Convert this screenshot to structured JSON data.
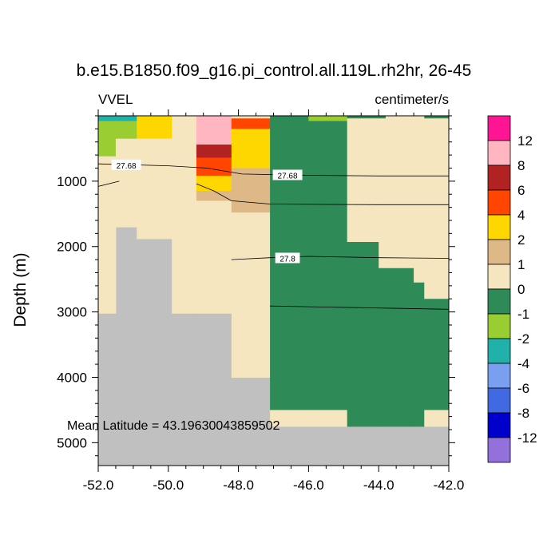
{
  "chart_data": {
    "type": "heatmap",
    "title": "b.e15.B1850.f09_g16.pi_control.all.119L.rh2hr, 26-45",
    "left_label": "VVEL",
    "right_label": "centimeter/s",
    "ylabel": "Depth (m)",
    "xlabel": "",
    "xlim": [
      -52.0,
      -42.0
    ],
    "ylim": [
      0,
      5350
    ],
    "y_inverted": true,
    "x_ticks": [
      -52.0,
      -50.0,
      -48.0,
      -46.0,
      -44.0,
      -42.0
    ],
    "x_tick_labels": [
      "-52.0",
      "-50.0",
      "-48.0",
      "-46.0",
      "-44.0",
      "-42.0"
    ],
    "y_ticks": [
      1000,
      2000,
      3000,
      4000,
      5000
    ],
    "y_tick_labels": [
      "1000",
      "2000",
      "3000",
      "4000",
      "5000"
    ],
    "annotation": "Mean Latitude = 43.19630043859502",
    "missing_color": "#c0c0c0",
    "colorbar": {
      "colors": [
        "#ff1493",
        "#ffb6c1",
        "#b22222",
        "#ff4500",
        "#ffd700",
        "#deb887",
        "#f5e6bf",
        "#2e8b57",
        "#9acd32",
        "#20b2aa",
        "#7b9ff0",
        "#4169e1",
        "#0000cd",
        "#9370db"
      ],
      "labels": [
        "12",
        "8",
        "6",
        "4",
        "2",
        "1",
        "0",
        "-1",
        "-2",
        "-4",
        "-6",
        "-8",
        "-12"
      ]
    },
    "cells": [
      {
        "x0": -52.0,
        "x1": -51.5,
        "y0": 0,
        "y1": 80,
        "c": "#20b2aa"
      },
      {
        "x0": -51.5,
        "x1": -50.9,
        "y0": 0,
        "y1": 80,
        "c": "#20b2aa"
      },
      {
        "x0": -52.0,
        "x1": -51.5,
        "y0": 80,
        "y1": 620,
        "c": "#9acd32"
      },
      {
        "x0": -51.5,
        "x1": -50.9,
        "y0": 80,
        "y1": 350,
        "c": "#9acd32"
      },
      {
        "x0": -51.5,
        "x1": -50.9,
        "y0": 350,
        "y1": 1700,
        "c": "#f5e6bf"
      },
      {
        "x0": -52.0,
        "x1": -51.5,
        "y0": 620,
        "y1": 3020,
        "c": "#f5e6bf"
      },
      {
        "x0": -50.9,
        "x1": -49.9,
        "y0": 0,
        "y1": 350,
        "c": "#ffd700"
      },
      {
        "x0": -50.9,
        "x1": -49.9,
        "y0": 350,
        "y1": 1880,
        "c": "#f5e6bf"
      },
      {
        "x0": -49.9,
        "x1": -49.2,
        "y0": 0,
        "y1": 350,
        "c": "#f5e6bf"
      },
      {
        "x0": -49.9,
        "x1": -49.2,
        "y0": 350,
        "y1": 3020,
        "c": "#f5e6bf"
      },
      {
        "x0": -49.2,
        "x1": -48.2,
        "y0": 0,
        "y1": 440,
        "c": "#ffb6c1"
      },
      {
        "x0": -49.2,
        "x1": -48.2,
        "y0": 440,
        "y1": 640,
        "c": "#b22222"
      },
      {
        "x0": -49.2,
        "x1": -48.2,
        "y0": 640,
        "y1": 920,
        "c": "#ff4500"
      },
      {
        "x0": -49.2,
        "x1": -48.2,
        "y0": 920,
        "y1": 1150,
        "c": "#ffd700"
      },
      {
        "x0": -49.2,
        "x1": -48.2,
        "y0": 1150,
        "y1": 1300,
        "c": "#deb887"
      },
      {
        "x0": -49.2,
        "x1": -48.2,
        "y0": 1300,
        "y1": 3020,
        "c": "#f5e6bf"
      },
      {
        "x0": -48.2,
        "x1": -47.1,
        "y0": 0,
        "y1": 40,
        "c": "#f5e6bf"
      },
      {
        "x0": -48.2,
        "x1": -47.1,
        "y0": 40,
        "y1": 200,
        "c": "#ff4500"
      },
      {
        "x0": -48.2,
        "x1": -47.1,
        "y0": 200,
        "y1": 800,
        "c": "#ffd700"
      },
      {
        "x0": -48.2,
        "x1": -47.1,
        "y0": 800,
        "y1": 1480,
        "c": "#deb887"
      },
      {
        "x0": -48.2,
        "x1": -47.1,
        "y0": 1480,
        "y1": 4000,
        "c": "#f5e6bf"
      },
      {
        "x0": -47.1,
        "x1": -46.0,
        "y0": 0,
        "y1": 3020,
        "c": "#2e8b57"
      },
      {
        "x0": -47.1,
        "x1": -46.0,
        "y0": 3020,
        "y1": 4000,
        "c": "#2e8b57"
      },
      {
        "x0": -47.1,
        "x1": -46.0,
        "y0": 4000,
        "y1": 4500,
        "c": "#2e8b57"
      },
      {
        "x0": -47.1,
        "x1": -46.0,
        "y0": 4500,
        "y1": 4750,
        "c": "#f5e6bf"
      },
      {
        "x0": -46.0,
        "x1": -44.9,
        "y0": 0,
        "y1": 80,
        "c": "#9acd32"
      },
      {
        "x0": -46.0,
        "x1": -44.9,
        "y0": 80,
        "y1": 4500,
        "c": "#2e8b57"
      },
      {
        "x0": -46.0,
        "x1": -44.9,
        "y0": 4500,
        "y1": 4750,
        "c": "#f5e6bf"
      },
      {
        "x0": -44.9,
        "x1": -44.0,
        "y0": 0,
        "y1": 40,
        "c": "#2e8b57"
      },
      {
        "x0": -44.9,
        "x1": -44.0,
        "y0": 40,
        "y1": 80,
        "c": "#f5e6bf"
      },
      {
        "x0": -44.9,
        "x1": -44.0,
        "y0": 80,
        "y1": 1930,
        "c": "#f5e6bf"
      },
      {
        "x0": -44.9,
        "x1": -44.0,
        "y0": 1930,
        "y1": 4500,
        "c": "#2e8b57"
      },
      {
        "x0": -44.9,
        "x1": -44.0,
        "y0": 4500,
        "y1": 4750,
        "c": "#2e8b57"
      },
      {
        "x0": -44.0,
        "x1": -43.8,
        "y0": 0,
        "y1": 40,
        "c": "#2e8b57"
      },
      {
        "x0": -43.8,
        "x1": -43.0,
        "y0": 0,
        "y1": 40,
        "c": "#f5e6bf"
      },
      {
        "x0": -44.0,
        "x1": -43.0,
        "y0": 40,
        "y1": 2330,
        "c": "#f5e6bf"
      },
      {
        "x0": -44.0,
        "x1": -43.0,
        "y0": 2330,
        "y1": 4750,
        "c": "#2e8b57"
      },
      {
        "x0": -43.0,
        "x1": -42.7,
        "y0": 0,
        "y1": 40,
        "c": "#f5e6bf"
      },
      {
        "x0": -42.7,
        "x1": -42.0,
        "y0": 0,
        "y1": 40,
        "c": "#2e8b57"
      },
      {
        "x0": -43.0,
        "x1": -42.0,
        "y0": 40,
        "y1": 2550,
        "c": "#f5e6bf"
      },
      {
        "x0": -43.0,
        "x1": -42.7,
        "y0": 2550,
        "y1": 4500,
        "c": "#2e8b57"
      },
      {
        "x0": -42.7,
        "x1": -42.0,
        "y0": 2550,
        "y1": 2800,
        "c": "#f5e6bf"
      },
      {
        "x0": -42.7,
        "x1": -42.0,
        "y0": 2800,
        "y1": 4500,
        "c": "#2e8b57"
      },
      {
        "x0": -43.0,
        "x1": -42.7,
        "y0": 4500,
        "y1": 4750,
        "c": "#2e8b57"
      },
      {
        "x0": -42.7,
        "x1": -42.0,
        "y0": 4500,
        "y1": 4750,
        "c": "#f5e6bf"
      }
    ],
    "contours": [
      {
        "label": "27.68",
        "points": [
          [
            -52.0,
            735
          ],
          [
            -50.0,
            765
          ],
          [
            -48.9,
            800
          ],
          [
            -47.9,
            890
          ],
          [
            -46.0,
            910
          ],
          [
            -44.0,
            920
          ],
          [
            -42.0,
            920
          ]
        ],
        "label_positions": [
          [
            -51.2,
            755
          ],
          [
            -46.6,
            910
          ]
        ]
      },
      {
        "label": "",
        "points": [
          [
            -52.0,
            1080
          ],
          [
            -51.4,
            1000
          ]
        ],
        "label_positions": []
      },
      {
        "label": "",
        "points": [
          [
            -49.2,
            1040
          ],
          [
            -48.7,
            1150
          ],
          [
            -48.2,
            1300
          ],
          [
            -47.1,
            1350
          ],
          [
            -46.0,
            1355
          ],
          [
            -44.0,
            1360
          ],
          [
            -42.0,
            1360
          ]
        ],
        "label_positions": []
      },
      {
        "label": "27.8",
        "points": [
          [
            -48.2,
            2200
          ],
          [
            -47.1,
            2170
          ],
          [
            -46.0,
            2150
          ],
          [
            -44.0,
            2170
          ],
          [
            -42.0,
            2180
          ]
        ],
        "label_positions": [
          [
            -46.6,
            2180
          ]
        ]
      },
      {
        "label": "",
        "points": [
          [
            -47.1,
            2910
          ],
          [
            -46.0,
            2920
          ],
          [
            -44.0,
            2940
          ],
          [
            -42.0,
            2960
          ]
        ],
        "label_positions": []
      }
    ]
  }
}
